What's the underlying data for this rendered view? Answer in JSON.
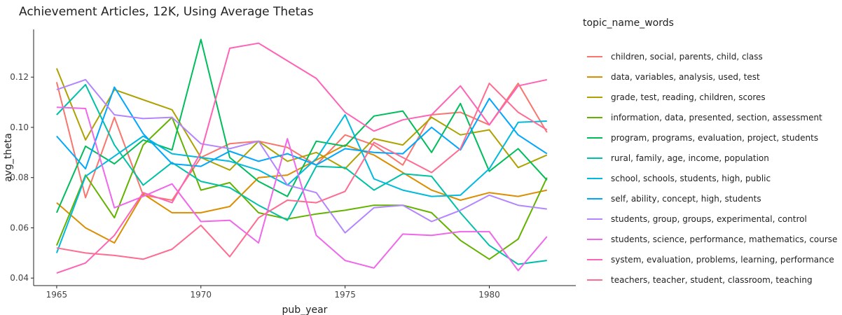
{
  "chart_data": {
    "type": "line",
    "title": "Achievement Articles, 12K, Using Average Thetas",
    "xlabel": "pub_year",
    "ylabel": "avg_theta",
    "xlim": [
      1964.2,
      1983.0
    ],
    "ylim": [
      0.037,
      0.139
    ],
    "x_ticks": [
      1965,
      1970,
      1975,
      1980
    ],
    "x_tick_labels": [
      "1965",
      "1970",
      "1975",
      "1980"
    ],
    "y_ticks": [
      0.04,
      0.06,
      0.08,
      0.1,
      0.12
    ],
    "y_tick_labels": [
      "0.04",
      "0.06",
      "0.08",
      "0.10",
      "0.12"
    ],
    "grid": false,
    "legend_title": "topic_name_words",
    "legend_position": "right",
    "x": [
      1965,
      1966,
      1967,
      1968,
      1969,
      1970,
      1971,
      1972,
      1973,
      1974,
      1975,
      1976,
      1977,
      1978,
      1979,
      1980,
      1981,
      1982
    ],
    "series": [
      {
        "name": "children, social, parents, child, class",
        "color": "#F8766D",
        "values": [
          0.118,
          0.072,
          0.104,
          0.073,
          0.071,
          0.088,
          0.0935,
          0.0945,
          0.092,
          0.085,
          0.097,
          0.093,
          0.085,
          0.105,
          0.106,
          0.101,
          0.1175,
          0.098
        ]
      },
      {
        "name": "data, variables, analysis, used, test",
        "color": "#DB8E00",
        "values": [
          0.07,
          0.06,
          0.054,
          0.0735,
          0.066,
          0.066,
          0.0685,
          0.08,
          0.081,
          0.087,
          0.093,
          0.089,
          0.082,
          0.075,
          0.071,
          0.074,
          0.0725,
          0.075
        ]
      },
      {
        "name": "grade, test, reading, children, scores",
        "color": "#AEA200",
        "values": [
          0.1235,
          0.095,
          0.115,
          0.111,
          0.107,
          0.088,
          0.083,
          0.0945,
          0.0865,
          0.09,
          0.0835,
          0.0955,
          0.093,
          0.104,
          0.097,
          0.099,
          0.084,
          0.089
        ]
      },
      {
        "name": "information, data, presented, section, assessment",
        "color": "#64B200",
        "values": [
          0.053,
          0.081,
          0.064,
          0.093,
          0.104,
          0.075,
          0.078,
          0.066,
          0.0635,
          0.0655,
          0.067,
          0.069,
          0.069,
          0.066,
          0.055,
          0.0475,
          0.0555,
          0.08
        ]
      },
      {
        "name": "program, programs, evaluation, project, students",
        "color": "#00BD5C",
        "values": [
          0.066,
          0.0925,
          0.0855,
          0.095,
          0.091,
          0.135,
          0.088,
          0.0785,
          0.0725,
          0.0945,
          0.0925,
          0.1045,
          0.1065,
          0.09,
          0.1095,
          0.0825,
          0.0915,
          0.079
        ]
      },
      {
        "name": "rural, family, age, income, population",
        "color": "#00C1A7",
        "values": [
          0.105,
          0.117,
          0.093,
          0.077,
          0.086,
          0.0785,
          0.076,
          0.069,
          0.063,
          0.0845,
          0.084,
          0.075,
          0.0815,
          0.0805,
          0.066,
          0.053,
          0.0455,
          0.047
        ]
      },
      {
        "name": "school, schools, students, high, public",
        "color": "#00BADE",
        "values": [
          0.05,
          0.0805,
          0.0885,
          0.0965,
          0.0895,
          0.088,
          0.0865,
          0.083,
          0.077,
          0.0875,
          0.105,
          0.0795,
          0.075,
          0.0725,
          0.073,
          0.0835,
          0.102,
          0.1025
        ]
      },
      {
        "name": "self, ability, concept, high, students",
        "color": "#00A6FF",
        "values": [
          0.0965,
          0.0835,
          0.116,
          0.0975,
          0.0855,
          0.0845,
          0.0905,
          0.0865,
          0.0895,
          0.085,
          0.0915,
          0.09,
          0.0895,
          0.1,
          0.091,
          0.1115,
          0.097,
          0.0895
        ]
      },
      {
        "name": "students, group, groups, experimental, control",
        "color": "#B385FF",
        "values": [
          0.115,
          0.119,
          0.105,
          0.1035,
          0.104,
          0.0935,
          0.0915,
          0.0945,
          0.077,
          0.074,
          0.058,
          0.068,
          0.069,
          0.0625,
          0.067,
          0.073,
          0.069,
          0.0675
        ]
      },
      {
        "name": "students, science, performance, mathematics, course",
        "color": "#EF67EB",
        "values": [
          0.108,
          0.1075,
          0.068,
          0.0725,
          0.0775,
          0.0625,
          0.063,
          0.054,
          0.0955,
          0.057,
          0.047,
          0.044,
          0.0575,
          0.057,
          0.0585,
          0.0585,
          0.043,
          0.0565
        ]
      },
      {
        "name": "system, evaluation, problems, learning, performance",
        "color": "#FF63B6",
        "values": [
          0.042,
          0.046,
          0.057,
          0.074,
          0.07,
          0.09,
          0.1315,
          0.1335,
          0.1265,
          0.1195,
          0.106,
          0.0985,
          0.103,
          0.105,
          0.1165,
          0.101,
          0.1165,
          0.119
        ]
      },
      {
        "name": "teachers, teacher, student, classroom, teaching",
        "color": "#FF6C91",
        "values": [
          0.052,
          0.05,
          0.049,
          0.0475,
          0.0515,
          0.061,
          0.0485,
          0.064,
          0.071,
          0.07,
          0.0745,
          0.094,
          0.088,
          0.082,
          0.0915,
          0.1175,
          0.106,
          0.099
        ]
      }
    ]
  }
}
